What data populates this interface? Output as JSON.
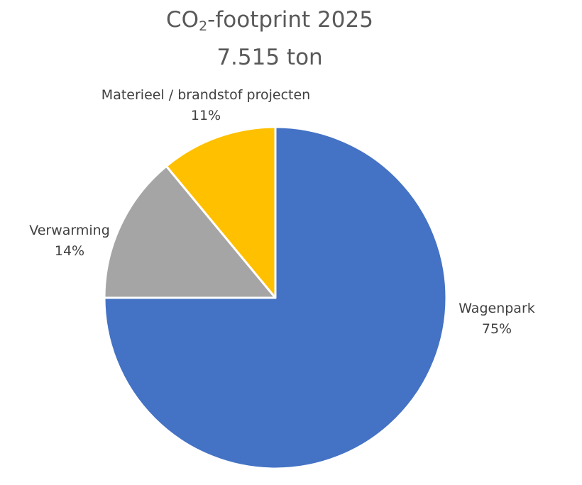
{
  "chart_data": {
    "type": "pie",
    "title": {
      "prefix": "CO",
      "subscript": "2",
      "suffix": "-footprint 2025",
      "line2": "7.515 ton"
    },
    "slices": [
      {
        "label": "Wagenpark",
        "value": 75,
        "value_label": "75%",
        "color": "#4472C4"
      },
      {
        "label": "Verwarming",
        "value": 14,
        "value_label": "14%",
        "color": "#A5A5A5"
      },
      {
        "label": "Materieel / brandstof projecten",
        "value": 11,
        "value_label": "11%",
        "color": "#FFC000"
      }
    ],
    "start_angle": "12 o'clock",
    "direction": "clockwise",
    "slice_border_color": "#FFFFFF",
    "legend": "none"
  }
}
